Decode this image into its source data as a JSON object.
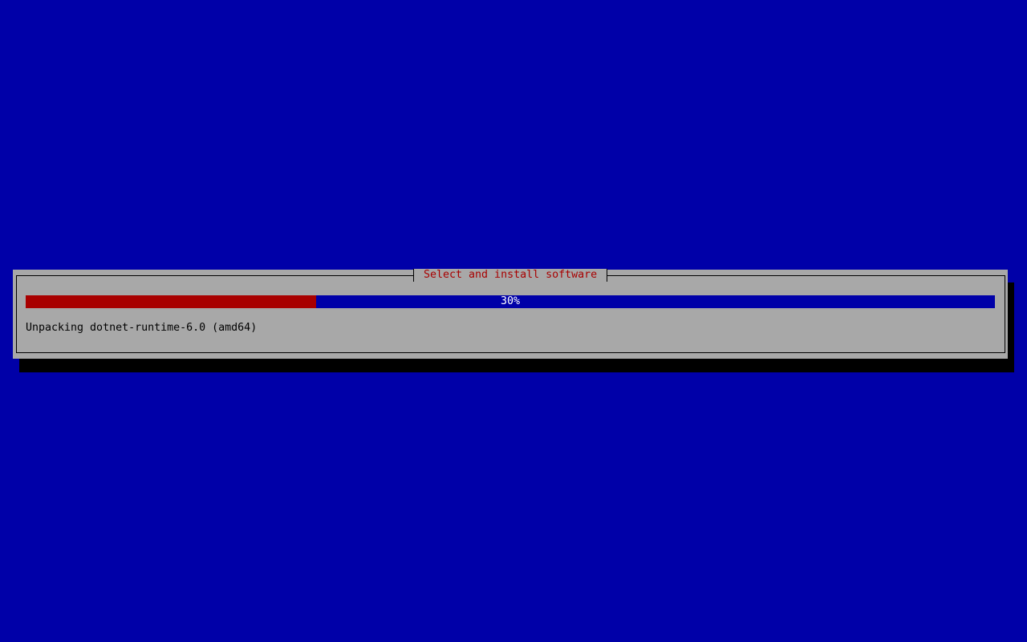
{
  "dialog": {
    "title": "Select and install software",
    "progress_percent": 30,
    "progress_label": "30%",
    "status_text": "Unpacking dotnet-runtime-6.0 (amd64)"
  },
  "colors": {
    "background": "#0000a8",
    "dialog": "#a8a8a8",
    "title": "#a80000",
    "progress_fill": "#a80000",
    "progress_track": "#0000a8"
  }
}
